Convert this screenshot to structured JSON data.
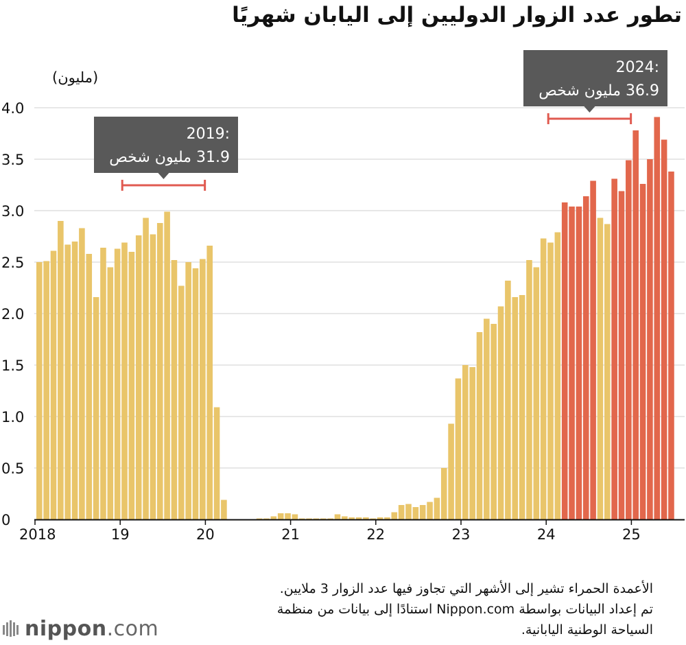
{
  "title": "تطور عدد الزوار الدوليين إلى اليابان شهريًا",
  "chart_data": {
    "type": "bar",
    "unit_label": "(مليون)",
    "ylim": [
      0,
      4.0
    ],
    "y_ticks": [
      "0",
      "0.5",
      "1.0",
      "1.5",
      "2.0",
      "2.5",
      "3.0",
      "3.5",
      "4.0"
    ],
    "x_ticks": [
      "2018",
      "19",
      "20",
      "21",
      "22",
      "23",
      "24",
      "25"
    ],
    "grid": true,
    "colors": {
      "normal": "#E9C56A",
      "highlight": "#E2674C",
      "bracket": "#E05A50",
      "callout_bg": "#595959"
    },
    "highlight_rule": "value > 3.0",
    "series": [
      {
        "start": "2018-01",
        "values": [
          2.5,
          2.51,
          2.61,
          2.9,
          2.67,
          2.7,
          2.83,
          2.58,
          2.16,
          2.64,
          2.45,
          2.63,
          2.69,
          2.6,
          2.76,
          2.93,
          2.77,
          2.88,
          2.99,
          2.52,
          2.27,
          2.5,
          2.44,
          2.53,
          2.66,
          1.09,
          0.19,
          0.0,
          0.0,
          0.0,
          0.0,
          0.01,
          0.01,
          0.03,
          0.06,
          0.06,
          0.05,
          0.01,
          0.01,
          0.01,
          0.01,
          0.01,
          0.05,
          0.03,
          0.02,
          0.02,
          0.02,
          0.01,
          0.02,
          0.02,
          0.07,
          0.14,
          0.15,
          0.12,
          0.14,
          0.17,
          0.21,
          0.5,
          0.93,
          1.37,
          1.5,
          1.48,
          1.82,
          1.95,
          1.9,
          2.07,
          2.32,
          2.16,
          2.18,
          2.52,
          2.45,
          2.73,
          2.69,
          2.79,
          3.08,
          3.04,
          3.04,
          3.14,
          3.29,
          2.93,
          2.87,
          3.31,
          3.19,
          3.49,
          3.78,
          3.26,
          3.5,
          3.91,
          3.69,
          3.38
        ]
      }
    ],
    "annotations": [
      {
        "year_line": "2019:",
        "value_line": "31.9 مليون شخص",
        "from": "2019-01",
        "to": "2019-12"
      },
      {
        "year_line": "2024:",
        "value_line": "36.9 مليون شخص",
        "from": "2024-01",
        "to": "2024-12"
      }
    ]
  },
  "footnote": {
    "line1": "الأعمدة الحمراء تشير إلى الأشهر التي تجاوز فيها عدد الزوار 3 ملايين.",
    "line2": "تم إعداد البيانات بواسطة Nippon.com استنادًا إلى بيانات من منظمة",
    "line3": "السياحة الوطنية اليابانية."
  },
  "logo": {
    "brand": "nippon",
    "suffix": ".com"
  }
}
